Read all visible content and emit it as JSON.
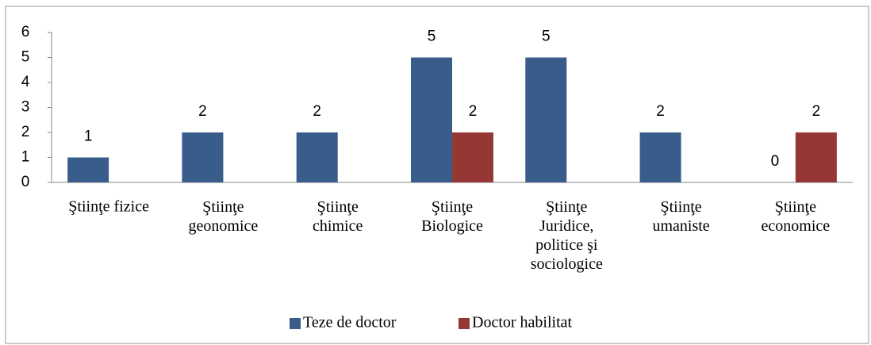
{
  "chart_data": {
    "type": "bar",
    "categories": [
      "Ştiinţe fizice",
      "Ştiinţe\ngeonomice",
      "Ştiinţe\nchimice",
      "Ştiinţe\nBiologice",
      "Ştiinţe\nJuridice,\npolitice şi\nsociologice",
      "Ştiinţe\numaniste",
      "Ştiinţe\neconomice"
    ],
    "series": [
      {
        "name": "Teze de doctor",
        "color": "#385d8a",
        "values": [
          1,
          2,
          2,
          5,
          5,
          2,
          0
        ]
      },
      {
        "name": "Doctor habilitat",
        "color": "#953735",
        "values": [
          null,
          null,
          null,
          2,
          null,
          null,
          2
        ]
      }
    ],
    "ylim": [
      0,
      6
    ],
    "yticks": [
      0,
      1,
      2,
      3,
      4,
      5,
      6
    ],
    "grid": false,
    "legend": "bottom"
  }
}
